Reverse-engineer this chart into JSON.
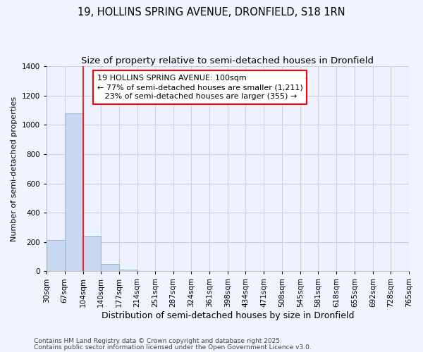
{
  "title_line1": "19, HOLLINS SPRING AVENUE, DRONFIELD, S18 1RN",
  "title_line2": "Size of property relative to semi-detached houses in Dronfield",
  "xlabel": "Distribution of semi-detached houses by size in Dronfield",
  "ylabel": "Number of semi-detached properties",
  "bin_edges": [
    30,
    67,
    104,
    140,
    177,
    214,
    251,
    287,
    324,
    361,
    398,
    434,
    471,
    508,
    545,
    581,
    618,
    655,
    692,
    728,
    765
  ],
  "bar_heights": [
    215,
    1080,
    240,
    50,
    10,
    2,
    1,
    1,
    1,
    0,
    0,
    0,
    0,
    0,
    0,
    0,
    0,
    0,
    0,
    0
  ],
  "bar_color": "#c8d8f0",
  "bar_edge_color": "#90b8d8",
  "red_line_x": 104,
  "ylim": [
    0,
    1400
  ],
  "yticks": [
    0,
    200,
    400,
    600,
    800,
    1000,
    1200,
    1400
  ],
  "annotation_text": "19 HOLLINS SPRING AVENUE: 100sqm\n← 77% of semi-detached houses are smaller (1,211)\n   23% of semi-detached houses are larger (355) →",
  "footnote1": "Contains HM Land Registry data © Crown copyright and database right 2025.",
  "footnote2": "Contains public sector information licensed under the Open Government Licence v3.0.",
  "background_color": "#f0f4ff",
  "plot_bg_color": "#eef2ff",
  "grid_color": "#c8d0e8",
  "title_fontsize": 10.5,
  "subtitle_fontsize": 9.5,
  "xlabel_fontsize": 9,
  "ylabel_fontsize": 8,
  "tick_fontsize": 7.5,
  "annotation_fontsize": 8,
  "footnote_fontsize": 6.5
}
